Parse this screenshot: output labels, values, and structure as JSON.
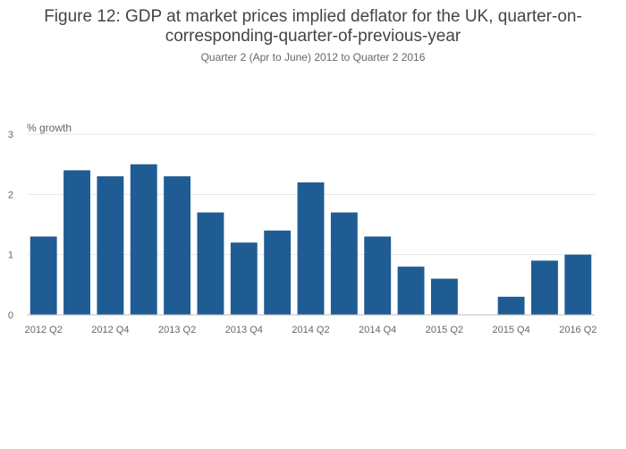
{
  "title": "Figure 12: GDP at market prices implied deflator for the UK, quarter-on-corresponding-quarter-of-previous-year",
  "subtitle": "Quarter 2 (Apr to June) 2012 to Quarter 2 2016",
  "chart_data": {
    "type": "bar",
    "title": "Figure 12: GDP at market prices implied deflator for the UK, quarter-on-corresponding-quarter-of-previous-year",
    "subtitle": "Quarter 2 (Apr to June) 2012 to Quarter 2 2016",
    "ylabel": "% growth",
    "xlabel": "",
    "ylim": [
      0,
      3
    ],
    "yticks": [
      0,
      1,
      2,
      3
    ],
    "grid": true,
    "bar_color": "#1f5c94",
    "categories": [
      "2012 Q2",
      "2012 Q3",
      "2012 Q4",
      "2013 Q1",
      "2013 Q2",
      "2013 Q3",
      "2013 Q4",
      "2014 Q1",
      "2014 Q2",
      "2014 Q3",
      "2014 Q4",
      "2015 Q1",
      "2015 Q2",
      "2015 Q3",
      "2015 Q4",
      "2016 Q1",
      "2016 Q2"
    ],
    "values": [
      1.3,
      2.4,
      2.3,
      2.5,
      2.3,
      1.7,
      1.2,
      1.4,
      2.2,
      1.7,
      1.3,
      0.8,
      0.6,
      0.0,
      0.3,
      0.9,
      1.0
    ],
    "xtick_labels": [
      "2012 Q2",
      "2012 Q4",
      "2013 Q2",
      "2013 Q4",
      "2014 Q2",
      "2014 Q4",
      "2015 Q2",
      "2015 Q4",
      "2016 Q2"
    ]
  }
}
